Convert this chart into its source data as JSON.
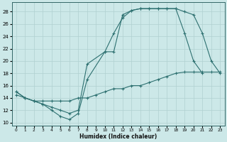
{
  "xlabel": "Humidex (Indice chaleur)",
  "bg_color": "#cce8e8",
  "grid_color": "#b0d0d0",
  "line_color": "#2d7070",
  "xlim": [
    -0.5,
    23.5
  ],
  "ylim": [
    9.5,
    29.5
  ],
  "xticks": [
    0,
    1,
    2,
    3,
    4,
    5,
    6,
    7,
    8,
    9,
    10,
    11,
    12,
    13,
    14,
    15,
    16,
    17,
    18,
    19,
    20,
    21,
    22,
    23
  ],
  "yticks": [
    10,
    12,
    14,
    16,
    18,
    20,
    22,
    24,
    26,
    28
  ],
  "line1_x": [
    0,
    1,
    2,
    3,
    4,
    5,
    6,
    7,
    8,
    10,
    11,
    12,
    13,
    14,
    15,
    16,
    17,
    18,
    19,
    20,
    21
  ],
  "line1_y": [
    15,
    14,
    13.5,
    13,
    12,
    11,
    10.5,
    11.5,
    17,
    21.5,
    24.5,
    27,
    28.2,
    28.5,
    28.5,
    28.5,
    28.5,
    28.5,
    24.5,
    20.0,
    18.0
  ],
  "line2_x": [
    0,
    1,
    2,
    3,
    4,
    5,
    6,
    7,
    8,
    10,
    11,
    12,
    13,
    14,
    15,
    16,
    17,
    18,
    19,
    20,
    21,
    22,
    23
  ],
  "line2_y": [
    15,
    14,
    13.5,
    13,
    12.5,
    12,
    11.5,
    12.0,
    19.5,
    21.5,
    21.5,
    27.5,
    28.2,
    28.5,
    28.5,
    28.5,
    28.5,
    28.5,
    28.0,
    27.5,
    24.5,
    20.0,
    18.0
  ],
  "line3_x": [
    0,
    1,
    2,
    3,
    4,
    5,
    6,
    7,
    8,
    9,
    10,
    11,
    12,
    13,
    14,
    15,
    16,
    17,
    18,
    19,
    20,
    21,
    22,
    23
  ],
  "line3_y": [
    14.5,
    14,
    13.5,
    13.5,
    13.5,
    13.5,
    13.5,
    14.0,
    14.0,
    14.5,
    15,
    15.5,
    15.5,
    16,
    16,
    16.5,
    17,
    17.5,
    18,
    18.2,
    18.2,
    18.2,
    18.2,
    18.2
  ]
}
